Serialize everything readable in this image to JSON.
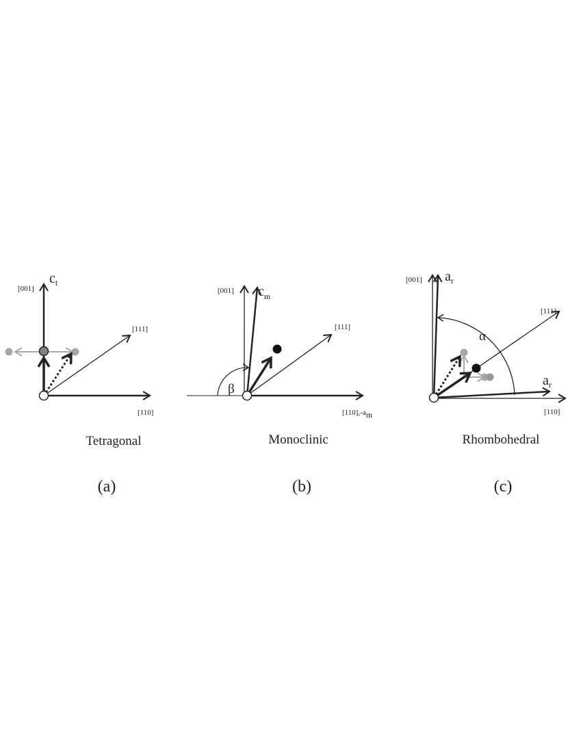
{
  "panels": [
    {
      "id": "a",
      "name": "Tetragonal",
      "tag": "(a)",
      "axis_z": "[001]",
      "axis_x": "[110]",
      "axis_d": "[111]",
      "cell_axis": "c",
      "cell_sub": "t"
    },
    {
      "id": "b",
      "name": "Monoclinic",
      "tag": "(b)",
      "axis_z": "[001]",
      "axis_x": "[110],-a",
      "axis_x_sub": "m",
      "axis_d": "[111]",
      "cell_axis": "c",
      "cell_sub": "m",
      "angle": "β"
    },
    {
      "id": "c",
      "name": "Rhombohedral",
      "tag": "(c)",
      "axis_z": "[001]",
      "axis_x": "[110]",
      "axis_d": "[111]",
      "cell_axis_top": "a",
      "cell_sub_top": "r",
      "cell_axis_right": "a",
      "cell_sub_right": "r",
      "angle": "α"
    }
  ],
  "colors": {
    "ink": "#222222",
    "gray": "#a8a8a8",
    "mid_gray": "#808080",
    "dark_dot": "#111111"
  }
}
